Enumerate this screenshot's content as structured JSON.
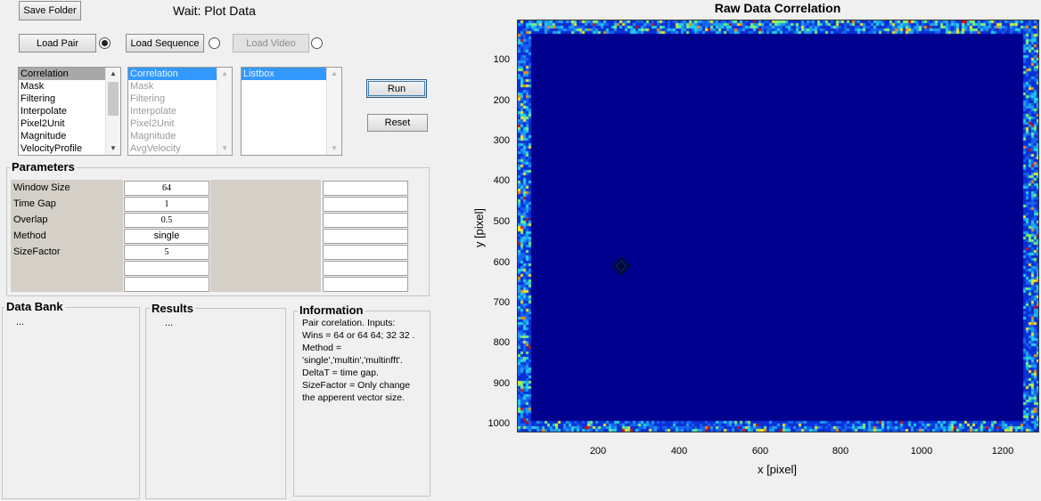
{
  "toolbar": {
    "save_folder": "Save Folder",
    "status_prefix": "Wait:",
    "status_text": "Plot Data"
  },
  "loaders": {
    "load_pair": "Load Pair",
    "load_pair_selected": true,
    "load_sequence": "Load Sequence",
    "load_sequence_selected": false,
    "load_video": "Load Video",
    "load_video_selected": false
  },
  "lists": {
    "operations": [
      "Correlation",
      "Mask",
      "Filtering",
      "Interpolate",
      "Pixel2Unit",
      "Magnitude",
      "VelocityProfile"
    ],
    "queue": [
      "Correlation",
      "Mask",
      "Filtering",
      "Interpolate",
      "Pixel2Unit",
      "Magnitude",
      "AvgVelocity"
    ],
    "listbox": [
      "Listbox"
    ]
  },
  "actions": {
    "run": "Run",
    "reset": "Reset"
  },
  "parameters": {
    "title": "Parameters",
    "rows": [
      {
        "label": "Window Size",
        "value": "64"
      },
      {
        "label": "Time Gap",
        "value": "1"
      },
      {
        "label": "Overlap",
        "value": "0.5"
      },
      {
        "label": "Method",
        "value": "single"
      },
      {
        "label": "SizeFactor",
        "value": "5"
      },
      {
        "label": "",
        "value": ""
      },
      {
        "label": "",
        "value": ""
      }
    ]
  },
  "data_bank": {
    "title": "Data Bank",
    "content": "..."
  },
  "results": {
    "title": "Results",
    "content": "..."
  },
  "information": {
    "title": "Information",
    "lines": [
      "Pair corelation. Inputs:",
      "Wins = 64 or 64 64; 32 32 .",
      "Method =",
      "'single','multin','multinfft'.",
      "DeltaT = time gap.",
      "SizeFactor = Only change",
      "the apperent vector size."
    ]
  },
  "plot": {
    "title": "Raw Data Correlation",
    "xlabel": "x [pixel]",
    "ylabel": "y [pixel]",
    "xticks": [
      "200",
      "400",
      "600",
      "800",
      "1000",
      "1200"
    ],
    "yticks": [
      "100",
      "200",
      "300",
      "400",
      "500",
      "600",
      "700",
      "800",
      "900",
      "1000"
    ],
    "colors": {
      "background": "#00008f",
      "border_noise": [
        "#0a2fd6",
        "#1464f0",
        "#1ea0f0",
        "#23d2e6",
        "#7ef07a",
        "#f0e628",
        "#f08a14",
        "#c81414"
      ],
      "marker": "#000a3c"
    }
  }
}
